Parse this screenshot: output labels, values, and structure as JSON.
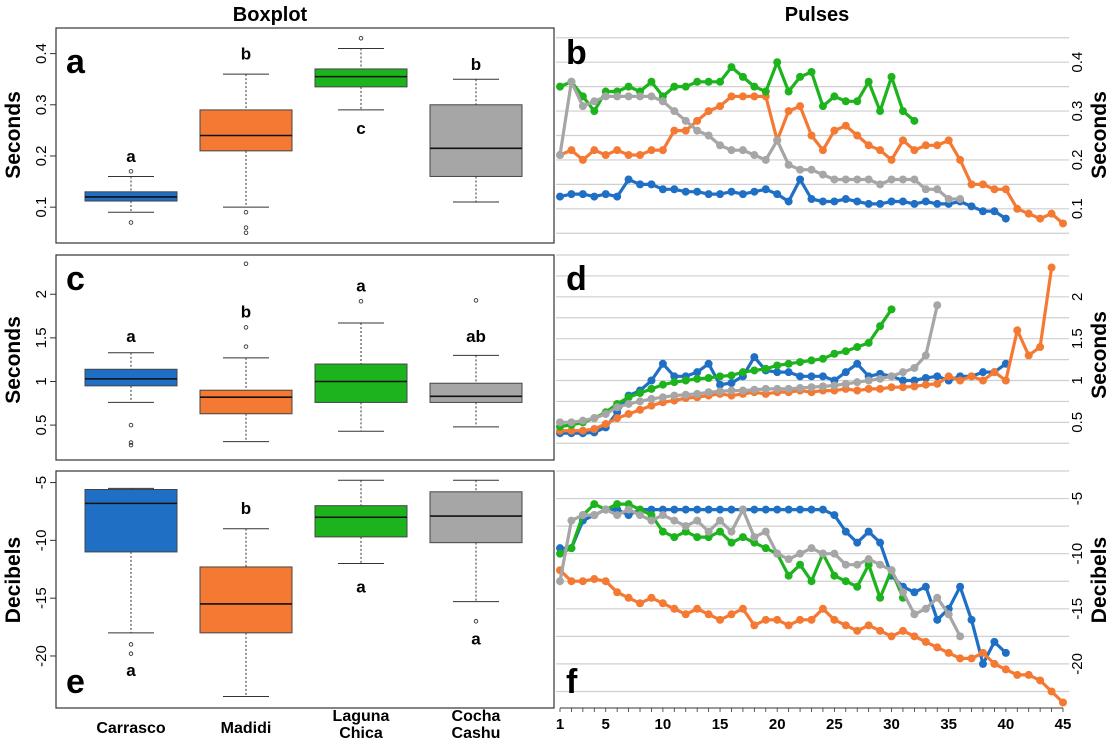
{
  "titles": {
    "left": "Boxplot",
    "right": "Pulses"
  },
  "groups": [
    "Carrasco",
    "Madidi",
    "Laguna Chica",
    "Cocha Cashu"
  ],
  "group_labels": [
    [
      "Carrasco"
    ],
    [
      "Madidi"
    ],
    [
      "Laguna",
      "Chica"
    ],
    [
      "Cocha",
      "Cashu"
    ]
  ],
  "colors": {
    "Carrasco": "#1f6fc5",
    "Madidi": "#f47a33",
    "Laguna Chica": "#1cb31c",
    "Cocha Cashu": "#a6a6a6"
  },
  "x_ticks": [
    "1",
    "5",
    "10",
    "15",
    "20",
    "25",
    "30",
    "35",
    "40",
    "45"
  ],
  "chart_data": [
    {
      "type": "box",
      "panel": "a",
      "ylabel": "Seconds",
      "ylim": [
        0.03,
        0.45
      ],
      "yticks": [
        "0.1",
        "0.2",
        "0.3",
        "0.4"
      ],
      "boxes": [
        {
          "group": "Carrasco",
          "min": 0.09,
          "q1": 0.112,
          "median": 0.12,
          "q3": 0.13,
          "max": 0.16,
          "outliers": [
            0.07,
            0.17
          ],
          "letter": "a",
          "letter_y": 0.2
        },
        {
          "group": "Madidi",
          "min": 0.1,
          "q1": 0.21,
          "median": 0.24,
          "q3": 0.29,
          "max": 0.36,
          "outliers": [
            0.09,
            0.06,
            0.05
          ],
          "letter": "b",
          "letter_y": 0.4
        },
        {
          "group": "Laguna Chica",
          "min": 0.29,
          "q1": 0.335,
          "median": 0.355,
          "q3": 0.37,
          "max": 0.41,
          "outliers": [
            0.43
          ],
          "letter": "c",
          "letter_y": 0.255
        },
        {
          "group": "Cocha Cashu",
          "min": 0.11,
          "q1": 0.16,
          "median": 0.215,
          "q3": 0.3,
          "max": 0.35,
          "outliers": [],
          "letter": "b",
          "letter_y": 0.38
        }
      ]
    },
    {
      "type": "line",
      "panel": "b",
      "ylabel": "Seconds",
      "ylim": [
        0.03,
        0.47
      ],
      "xlim": [
        1,
        45
      ],
      "yticks": [
        "0.1",
        "0.2",
        "0.3",
        "0.4"
      ],
      "series": [
        {
          "group": "Carrasco",
          "y": [
            0.125,
            0.13,
            0.13,
            0.125,
            0.13,
            0.125,
            0.16,
            0.15,
            0.15,
            0.14,
            0.14,
            0.135,
            0.135,
            0.13,
            0.13,
            0.135,
            0.13,
            0.135,
            0.14,
            0.13,
            0.115,
            0.16,
            0.12,
            0.115,
            0.115,
            0.12,
            0.115,
            0.11,
            0.11,
            0.115,
            0.115,
            0.11,
            0.115,
            0.11,
            0.11,
            0.115,
            0.105,
            0.095,
            0.095,
            0.08
          ]
        },
        {
          "group": "Madidi",
          "y": [
            0.21,
            0.22,
            0.2,
            0.22,
            0.21,
            0.22,
            0.21,
            0.21,
            0.22,
            0.22,
            0.26,
            0.26,
            0.28,
            0.3,
            0.31,
            0.33,
            0.33,
            0.33,
            0.33,
            0.24,
            0.3,
            0.31,
            0.25,
            0.22,
            0.26,
            0.27,
            0.25,
            0.23,
            0.22,
            0.2,
            0.24,
            0.22,
            0.23,
            0.23,
            0.24,
            0.2,
            0.15,
            0.15,
            0.14,
            0.14,
            0.1,
            0.09,
            0.08,
            0.09,
            0.07
          ]
        },
        {
          "group": "Laguna Chica",
          "y": [
            0.35,
            0.36,
            0.33,
            0.3,
            0.34,
            0.34,
            0.35,
            0.34,
            0.36,
            0.33,
            0.35,
            0.35,
            0.36,
            0.36,
            0.36,
            0.39,
            0.37,
            0.35,
            0.34,
            0.4,
            0.34,
            0.37,
            0.38,
            0.31,
            0.33,
            0.32,
            0.32,
            0.36,
            0.3,
            0.37,
            0.3,
            0.28
          ]
        },
        {
          "group": "Cocha Cashu",
          "y": [
            0.21,
            0.36,
            0.31,
            0.32,
            0.33,
            0.33,
            0.33,
            0.33,
            0.33,
            0.32,
            0.3,
            0.28,
            0.26,
            0.25,
            0.23,
            0.22,
            0.22,
            0.21,
            0.2,
            0.24,
            0.19,
            0.18,
            0.18,
            0.17,
            0.16,
            0.16,
            0.16,
            0.16,
            0.15,
            0.16,
            0.16,
            0.16,
            0.14,
            0.14,
            0.12,
            0.12
          ]
        }
      ]
    },
    {
      "type": "box",
      "panel": "c",
      "ylabel": "Seconds",
      "ylim": [
        0.1,
        2.45
      ],
      "yticks": [
        "0.5",
        "1",
        "1.5",
        "2"
      ],
      "boxes": [
        {
          "group": "Carrasco",
          "min": 0.76,
          "q1": 0.95,
          "median": 1.03,
          "q3": 1.14,
          "max": 1.33,
          "outliers": [
            0.5,
            0.3,
            0.27
          ],
          "letter": "a",
          "letter_y": 1.52
        },
        {
          "group": "Madidi",
          "min": 0.31,
          "q1": 0.63,
          "median": 0.82,
          "q3": 0.9,
          "max": 1.27,
          "outliers": [
            1.4,
            1.62,
            2.35
          ],
          "letter": "b",
          "letter_y": 1.8
        },
        {
          "group": "Laguna Chica",
          "min": 0.43,
          "q1": 0.76,
          "median": 1.0,
          "q3": 1.2,
          "max": 1.67,
          "outliers": [
            1.92
          ],
          "letter": "a",
          "letter_y": 2.1
        },
        {
          "group": "Cocha Cashu",
          "min": 0.48,
          "q1": 0.76,
          "median": 0.83,
          "q3": 0.98,
          "max": 1.3,
          "outliers": [
            1.93
          ],
          "letter": "ab",
          "letter_y": 1.52
        }
      ]
    },
    {
      "type": "line",
      "panel": "d",
      "ylabel": "Seconds",
      "ylim": [
        0.05,
        2.5
      ],
      "xlim": [
        1,
        45
      ],
      "yticks": [
        "0.5",
        "1",
        "1.5",
        "2"
      ],
      "series": [
        {
          "group": "Carrasco",
          "y": [
            0.37,
            0.37,
            0.37,
            0.38,
            0.44,
            0.62,
            0.82,
            0.88,
            1.0,
            1.2,
            1.05,
            1.05,
            1.1,
            1.2,
            0.95,
            0.97,
            1.05,
            1.28,
            1.12,
            1.1,
            1.1,
            1.05,
            1.05,
            1.05,
            1.0,
            1.1,
            1.2,
            1.05,
            1.08,
            1.05,
            1.0,
            1.0,
            1.03,
            1.05,
            1.0,
            1.05,
            1.05,
            1.1,
            1.1,
            1.2
          ]
        },
        {
          "group": "Madidi",
          "y": [
            0.4,
            0.4,
            0.4,
            0.42,
            0.48,
            0.55,
            0.6,
            0.65,
            0.7,
            0.74,
            0.76,
            0.79,
            0.8,
            0.82,
            0.84,
            0.82,
            0.84,
            0.86,
            0.84,
            0.86,
            0.86,
            0.88,
            0.86,
            0.88,
            0.88,
            0.9,
            0.88,
            0.9,
            0.9,
            0.92,
            0.92,
            0.93,
            0.95,
            0.96,
            1.05,
            1.0,
            1.05,
            1.0,
            1.1,
            1.0,
            1.6,
            1.3,
            1.4,
            2.35
          ]
        },
        {
          "group": "Laguna Chica",
          "y": [
            0.45,
            0.47,
            0.5,
            0.55,
            0.62,
            0.72,
            0.8,
            0.85,
            0.9,
            0.95,
            0.98,
            1.0,
            1.02,
            1.03,
            1.05,
            1.06,
            1.1,
            1.12,
            1.14,
            1.18,
            1.2,
            1.22,
            1.24,
            1.26,
            1.32,
            1.35,
            1.4,
            1.45,
            1.65,
            1.85
          ]
        },
        {
          "group": "Cocha Cashu",
          "y": [
            0.5,
            0.5,
            0.52,
            0.55,
            0.6,
            0.68,
            0.72,
            0.75,
            0.78,
            0.8,
            0.82,
            0.83,
            0.84,
            0.86,
            0.87,
            0.88,
            0.88,
            0.89,
            0.9,
            0.9,
            0.9,
            0.91,
            0.92,
            0.93,
            0.94,
            0.96,
            0.98,
            1.0,
            1.02,
            1.05,
            1.1,
            1.15,
            1.3,
            1.9
          ]
        }
      ]
    },
    {
      "type": "box",
      "panel": "e",
      "ylabel": "Decibels",
      "ylim": [
        -24.5,
        -4
      ],
      "yticks": [
        "-20",
        "-15",
        "-10",
        "-5"
      ],
      "boxes": [
        {
          "group": "Carrasco",
          "min": -18.0,
          "q1": -11.0,
          "median": -6.8,
          "q3": -5.6,
          "max": -5.5,
          "outliers": [
            -19.0,
            -19.8
          ],
          "letter": "a",
          "letter_y": -21.2
        },
        {
          "group": "Madidi",
          "min": -23.5,
          "q1": -18.0,
          "median": -15.5,
          "q3": -12.3,
          "max": -9.0,
          "outliers": [],
          "letter": "b",
          "letter_y": -7.2
        },
        {
          "group": "Laguna Chica",
          "min": -12.0,
          "q1": -9.7,
          "median": -8.0,
          "q3": -7.0,
          "max": -4.8,
          "outliers": [],
          "letter": "a",
          "letter_y": -14.0
        },
        {
          "group": "Cocha Cashu",
          "min": -15.3,
          "q1": -10.2,
          "median": -7.9,
          "q3": -5.8,
          "max": -4.8,
          "outliers": [
            -17.0
          ],
          "letter": "a",
          "letter_y": -18.5
        }
      ]
    },
    {
      "type": "line",
      "panel": "f",
      "ylabel": "Decibels",
      "ylim": [
        -24,
        -2.5
      ],
      "xlim": [
        1,
        45
      ],
      "yticks": [
        "-20",
        "-15",
        "-10",
        "-5"
      ],
      "series": [
        {
          "group": "Carrasco",
          "y": [
            -9.5,
            -9.5,
            -7.0,
            -6.5,
            -6.0,
            -6.0,
            -6.5,
            -6.0,
            -6.0,
            -6.0,
            -6.0,
            -6.0,
            -6.0,
            -6.0,
            -6.0,
            -6.0,
            -6.0,
            -6.0,
            -6.0,
            -6.0,
            -6.0,
            -6.0,
            -6.0,
            -6.0,
            -6.5,
            -8.0,
            -9.0,
            -8.0,
            -9.0,
            -12.0,
            -13.0,
            -13.5,
            -13.0,
            -16.0,
            -15.0,
            -13.0,
            -16.0,
            -20.0,
            -18.0,
            -19.0
          ]
        },
        {
          "group": "Madidi",
          "y": [
            -11.5,
            -12.5,
            -12.5,
            -12.3,
            -12.5,
            -13.5,
            -14.0,
            -14.5,
            -14.0,
            -14.5,
            -15.0,
            -15.5,
            -15.0,
            -15.5,
            -16.0,
            -15.5,
            -15.0,
            -16.5,
            -16.0,
            -16.0,
            -16.5,
            -16.0,
            -16.0,
            -15.0,
            -16.0,
            -16.5,
            -17.0,
            -16.5,
            -17.0,
            -17.5,
            -17.0,
            -17.5,
            -18.0,
            -18.5,
            -19.0,
            -19.5,
            -19.5,
            -19.0,
            -20.0,
            -20.5,
            -21.0,
            -21.0,
            -21.5,
            -22.5,
            -23.5
          ]
        },
        {
          "group": "Laguna Chica",
          "y": [
            -10.0,
            -9.5,
            -6.5,
            -5.5,
            -6.0,
            -5.5,
            -5.5,
            -6.0,
            -6.5,
            -8.0,
            -8.5,
            -8.0,
            -8.5,
            -8.5,
            -8.0,
            -9.0,
            -8.5,
            -9.0,
            -9.5,
            -10.0,
            -12.0,
            -11.0,
            -12.5,
            -10.0,
            -12.0,
            -12.5,
            -13.0,
            -11.0,
            -14.0,
            -11.5,
            -14.0
          ]
        },
        {
          "group": "Cocha Cashu",
          "y": [
            -12.5,
            -7.0,
            -6.5,
            -6.5,
            -6.0,
            -6.5,
            -6.0,
            -6.5,
            -7.0,
            -6.5,
            -7.0,
            -7.5,
            -7.0,
            -8.0,
            -7.0,
            -8.0,
            -6.0,
            -8.5,
            -8.0,
            -10.0,
            -10.5,
            -10.0,
            -9.5,
            -10.0,
            -10.0,
            -11.0,
            -11.0,
            -10.5,
            -11.0,
            -11.5,
            -13.5,
            -15.5,
            -15.0,
            -14.0,
            -15.5,
            -17.5
          ]
        }
      ]
    }
  ]
}
